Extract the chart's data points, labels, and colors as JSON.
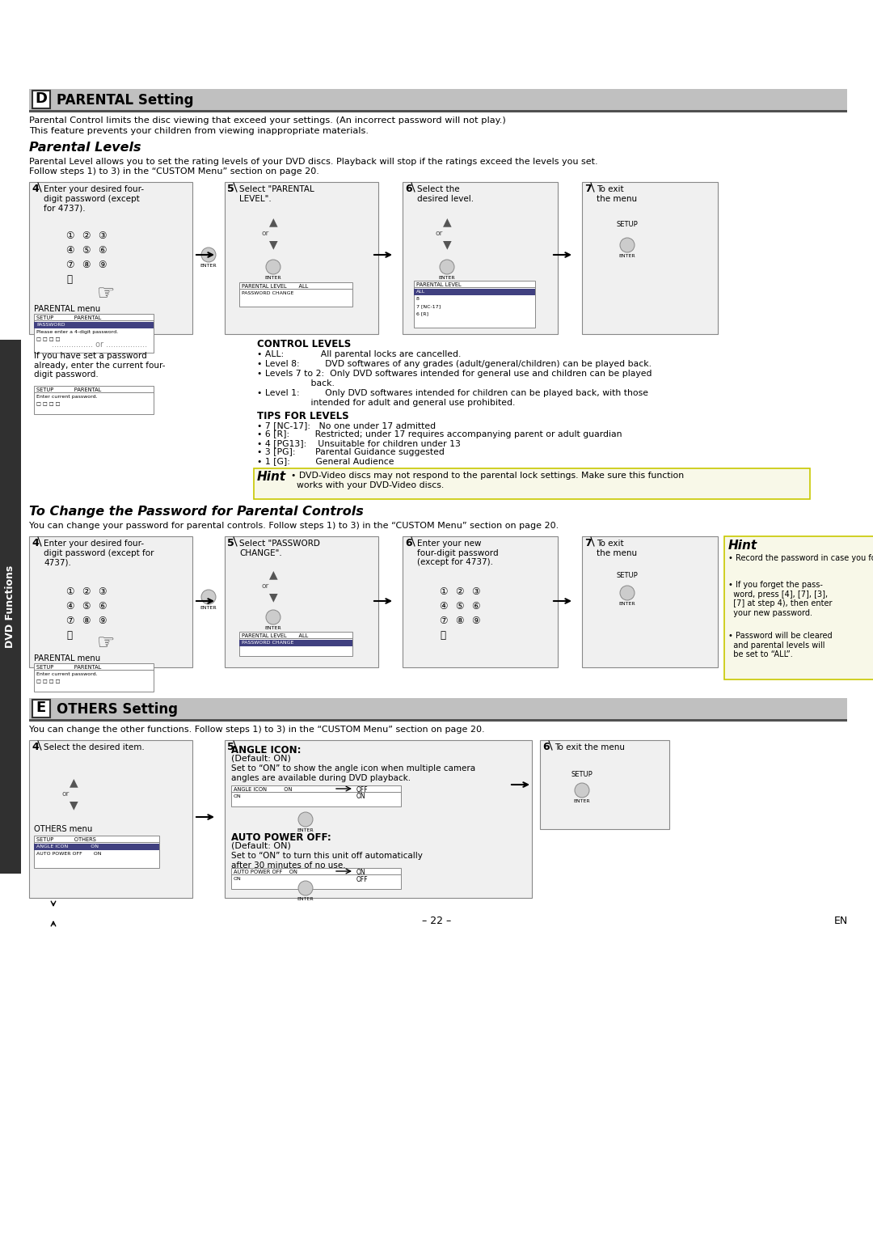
{
  "bg_color": "#ffffff",
  "sidebar_color": "#303030",
  "sidebar_text": "DVD Functions",
  "header_d_title": "PARENTAL Setting",
  "header_d_letter": "D",
  "header_e_title": "OTHERS Setting",
  "header_e_letter": "E",
  "parental_levels_title": "Parental Levels",
  "change_password_title": "To Change the Password for Parental Controls",
  "parental_intro1": "Parental Control limits the disc viewing that exceed your settings. (An incorrect password will not play.)",
  "parental_intro2": "This feature prevents your children from viewing inappropriate materials.",
  "parental_levels_desc": "Parental Level allows you to set the rating levels of your DVD discs. Playback will stop if the ratings exceed the levels you set.",
  "parental_levels_desc2": "Follow steps 1) to 3) in the “CUSTOM Menu” section on page 20.",
  "change_password_desc": "You can change your password for parental controls. Follow steps 1) to 3) in the “CUSTOM Menu” section on page 20.",
  "others_desc": "You can change the other functions. Follow steps 1) to 3) in the “CUSTOM Menu” section on page 20.",
  "control_levels_header": "CONTROL LEVELS",
  "control_levels": [
    "• ALL:             All parental locks are cancelled.",
    "• Level 8:         DVD softwares of any grades (adult/general/children) can be played back.",
    "• Levels 7 to 2:  Only DVD softwares intended for general use and children can be played",
    "                   back.",
    "• Level 1:         Only DVD softwares intended for children can be played back, with those",
    "                   intended for adult and general use prohibited."
  ],
  "tips_header": "TIPS FOR LEVELS",
  "tips": [
    "• 7 [NC-17]:   No one under 17 admitted",
    "• 6 [R]:         Restricted; under 17 requires accompanying parent or adult guardian",
    "• 4 [PG13]:    Unsuitable for children under 13",
    "• 3 [PG]:       Parental Guidance suggested",
    "• 1 [G]:         General Audience"
  ],
  "hint_text1": "• DVD-Video discs may not respond to the parental lock settings. Make sure this function",
  "hint_text2": "  works with your DVD-Video discs.",
  "hint2_line1": "• Record the password in case you forget it.",
  "hint2_line2": "• If you forget the pass-\n  word, press [4], [7], [3],\n  [7] at step 4), then enter\n  your new password.",
  "hint2_line3": "• Password will be cleared\n  and parental levels will\n  be set to “ALL”.",
  "angle_icon_header": "ANGLE ICON:",
  "angle_icon_default": "Default: ON",
  "angle_icon_desc": "Set to “ON” to show the angle icon when multiple camera\nangles are available during DVD playback.",
  "auto_power_header": "AUTO POWER OFF:",
  "auto_power_default": "Default: ON",
  "auto_power_desc": "Set to “ON” to turn this unit off automatically\nafter 30 minutes of no use.",
  "page_number": "– 22 –",
  "en_label": "EN",
  "header_gray": "#c0c0c0",
  "dark_bar": "#505050",
  "box_face": "#f0f0f0",
  "menu_highlight": "#404080",
  "hint_face": "#f8f8e8",
  "hint_edge": "#c8c800"
}
